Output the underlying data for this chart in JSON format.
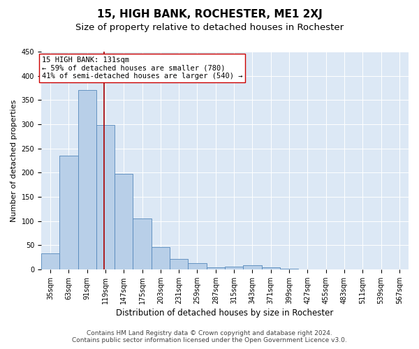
{
  "title": "15, HIGH BANK, ROCHESTER, ME1 2XJ",
  "subtitle": "Size of property relative to detached houses in Rochester",
  "xlabel": "Distribution of detached houses by size in Rochester",
  "ylabel": "Number of detached properties",
  "bar_edges": [
    35,
    63,
    91,
    119,
    147,
    175,
    203,
    231,
    259,
    287,
    315,
    343,
    371,
    399,
    427,
    455,
    483,
    511,
    539,
    567,
    595
  ],
  "bar_heights": [
    33,
    235,
    370,
    298,
    197,
    105,
    46,
    21,
    13,
    4,
    6,
    9,
    4,
    2,
    0,
    0,
    0,
    0,
    0,
    0
  ],
  "bar_color": "#b8cfe8",
  "bar_edge_color": "#5588bb",
  "vline_x": 131,
  "vline_color": "#aa0000",
  "annotation_text": "15 HIGH BANK: 131sqm\n← 59% of detached houses are smaller (780)\n41% of semi-detached houses are larger (540) →",
  "annotation_box_color": "#ffffff",
  "annotation_box_edge": "#cc0000",
  "ylim": [
    0,
    450
  ],
  "yticks": [
    0,
    50,
    100,
    150,
    200,
    250,
    300,
    350,
    400,
    450
  ],
  "background_color": "#dce8f5",
  "footer_line1": "Contains HM Land Registry data © Crown copyright and database right 2024.",
  "footer_line2": "Contains public sector information licensed under the Open Government Licence v3.0.",
  "title_fontsize": 11,
  "subtitle_fontsize": 9.5,
  "xlabel_fontsize": 8.5,
  "ylabel_fontsize": 8,
  "tick_fontsize": 7,
  "annotation_fontsize": 7.5,
  "footer_fontsize": 6.5
}
